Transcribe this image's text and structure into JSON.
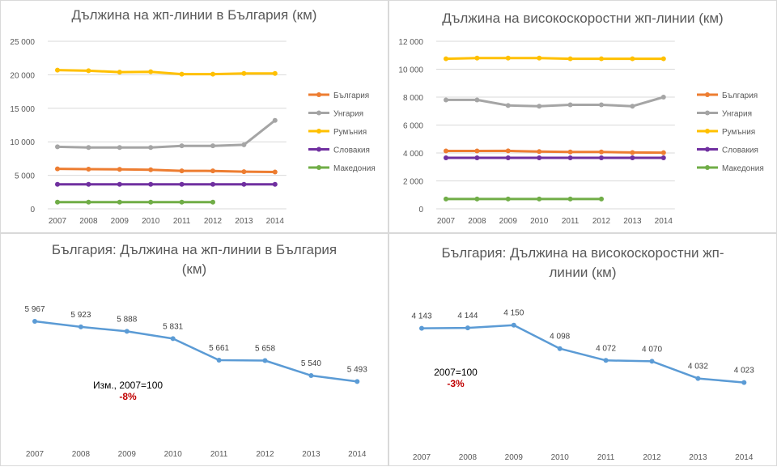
{
  "chart_data": [
    {
      "type": "line",
      "title": "Дължина на жп-линии в България (км)",
      "categories": [
        "2007",
        "2008",
        "2009",
        "2010",
        "2011",
        "2012",
        "2013",
        "2014"
      ],
      "ylim": [
        0,
        25000
      ],
      "yticks": [
        0,
        5000,
        10000,
        15000,
        20000,
        25000
      ],
      "ytick_labels": [
        "0",
        "5 000",
        "10 000",
        "15 000",
        "20 000",
        "25 000"
      ],
      "grid": true,
      "legend_position": "right",
      "series": [
        {
          "name": "България",
          "color": "#ed7d31",
          "values": [
            5967,
            5923,
            5888,
            5831,
            5661,
            5658,
            5540,
            5493
          ]
        },
        {
          "name": "Унгария",
          "color": "#a5a5a5",
          "values": [
            9250,
            9150,
            9150,
            9150,
            9400,
            9400,
            9550,
            13200
          ]
        },
        {
          "name": "Румъния",
          "color": "#ffc000",
          "values": [
            20700,
            20600,
            20400,
            20450,
            20100,
            20100,
            20200,
            20200
          ]
        },
        {
          "name": "Словакия",
          "color": "#7030a0",
          "values": [
            3650,
            3650,
            3650,
            3650,
            3650,
            3650,
            3650,
            3650
          ]
        },
        {
          "name": "Македония",
          "color": "#70ad47",
          "values": [
            1000,
            1000,
            1000,
            1000,
            1000,
            1000,
            null,
            null
          ]
        }
      ]
    },
    {
      "type": "line",
      "title": "Дължина на високоскоростни жп-линии (км)",
      "categories": [
        "2007",
        "2008",
        "2009",
        "2010",
        "2011",
        "2012",
        "2013",
        "2014"
      ],
      "ylim": [
        0,
        12000
      ],
      "yticks": [
        0,
        2000,
        4000,
        6000,
        8000,
        10000,
        12000
      ],
      "ytick_labels": [
        "0",
        "2 000",
        "4 000",
        "6 000",
        "8 000",
        "10 000",
        "12 000"
      ],
      "grid": true,
      "legend_position": "right",
      "series": [
        {
          "name": "България",
          "color": "#ed7d31",
          "values": [
            4143,
            4144,
            4150,
            4098,
            4072,
            4070,
            4032,
            4023
          ]
        },
        {
          "name": "Унгария",
          "color": "#a5a5a5",
          "values": [
            7800,
            7800,
            7400,
            7350,
            7450,
            7450,
            7350,
            8000
          ]
        },
        {
          "name": "Румъния",
          "color": "#ffc000",
          "values": [
            10750,
            10800,
            10800,
            10800,
            10750,
            10750,
            10750,
            10750
          ]
        },
        {
          "name": "Словакия",
          "color": "#7030a0",
          "values": [
            3650,
            3650,
            3650,
            3650,
            3650,
            3650,
            3650,
            3650
          ]
        },
        {
          "name": "Македония",
          "color": "#70ad47",
          "values": [
            700,
            700,
            700,
            700,
            700,
            700,
            null,
            null
          ]
        }
      ]
    },
    {
      "type": "line",
      "title": "България: Дължина на жп-линии в България\n(км)",
      "categories": [
        "2007",
        "2008",
        "2009",
        "2010",
        "2011",
        "2012",
        "2013",
        "2014"
      ],
      "ylim": [
        5400,
        6050
      ],
      "grid": false,
      "series": [
        {
          "color": "#5b9bd5",
          "values": [
            5967,
            5923,
            5888,
            5831,
            5661,
            5658,
            5540,
            5493
          ],
          "labels": [
            "5 967",
            "5 923",
            "5 888",
            "5 831",
            "5 661",
            "5 658",
            "5 540",
            "5 493"
          ]
        }
      ],
      "annotation": {
        "text": "Изм., 2007=100",
        "value": "-8%"
      }
    },
    {
      "type": "line",
      "title": "България: Дължина на високоскоростни жп-\nлинии (км)",
      "categories": [
        "2007",
        "2008",
        "2009",
        "2010",
        "2011",
        "2012",
        "2013",
        "2014"
      ],
      "ylim": [
        3990,
        4180
      ],
      "grid": false,
      "series": [
        {
          "color": "#5b9bd5",
          "values": [
            4143,
            4144,
            4150,
            4098,
            4072,
            4070,
            4032,
            4023
          ],
          "labels": [
            "4 143",
            "4 144",
            "4 150",
            "4 098",
            "4 072",
            "4 070",
            "4 032",
            "4 023"
          ]
        }
      ],
      "annotation": {
        "text": "2007=100",
        "value": "-3%"
      }
    }
  ]
}
